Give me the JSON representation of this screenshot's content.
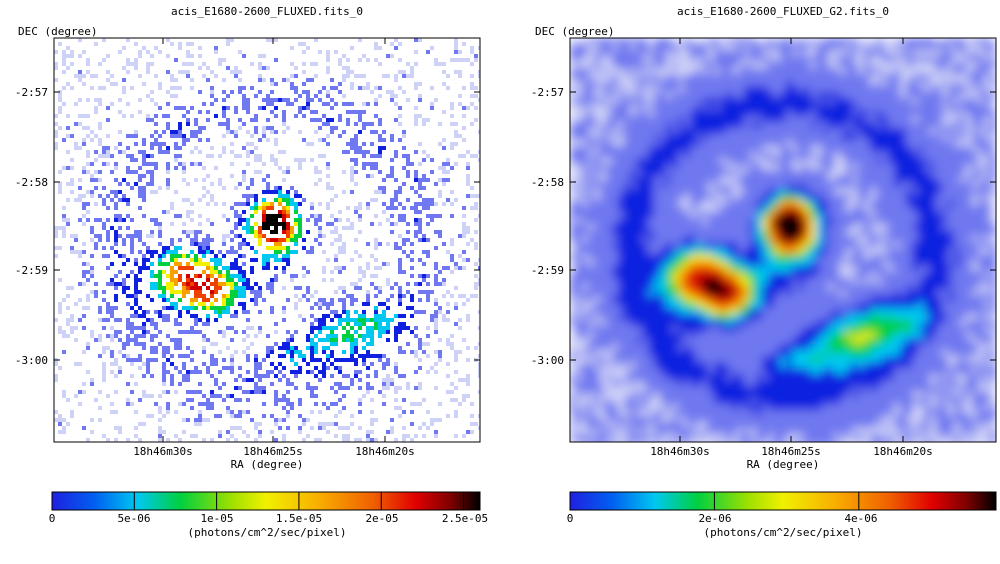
{
  "chart_data": [
    {
      "type": "heatmap",
      "title": "acis_E1680-2600_FLUXED.fits_0",
      "xlabel": "RA (degree)",
      "ylabel": "DEC (degree)",
      "x_ticks": [
        "18h46m30s",
        "18h46m25s",
        "18h46m20s"
      ],
      "y_ticks": [
        "-2:57",
        "-2:58",
        "-2:59",
        "-3:00"
      ],
      "colorbar": {
        "label": "(photons/cm^2/sec/pixel)",
        "min": 0,
        "max": 2.6e-05,
        "ticks": [
          {
            "value": 0,
            "label": "0"
          },
          {
            "value": 5e-06,
            "label": "5e-06"
          },
          {
            "value": 1e-05,
            "label": "1e-05"
          },
          {
            "value": 1.5e-05,
            "label": "1.5e-05"
          },
          {
            "value": 2e-05,
            "label": "2e-05"
          },
          {
            "value": 2.5e-05,
            "label": "2.5e-05"
          }
        ]
      },
      "smoothed": false
    },
    {
      "type": "heatmap",
      "title": "acis_E1680-2600_FLUXED_G2.fits_0",
      "xlabel": "RA (degree)",
      "ylabel": "DEC (degree)",
      "x_ticks": [
        "18h46m30s",
        "18h46m25s",
        "18h46m20s"
      ],
      "y_ticks": [
        "-2:57",
        "-2:58",
        "-2:59",
        "-3:00"
      ],
      "colorbar": {
        "label": "(photons/cm^2/sec/pixel)",
        "min": 0,
        "max": 5.9e-06,
        "ticks": [
          {
            "value": 0,
            "label": "0"
          },
          {
            "value": 2e-06,
            "label": "2e-06"
          },
          {
            "value": 4e-06,
            "label": "4e-06"
          }
        ]
      },
      "smoothed": true
    }
  ],
  "colors": {
    "colormap": [
      "#ffffff",
      "#cfd2f7",
      "#6f78f0",
      "#1020e0",
      "#00c8f0",
      "#00d040",
      "#f0f000",
      "#f8a000",
      "#f04000",
      "#d00000",
      "#000000"
    ]
  }
}
